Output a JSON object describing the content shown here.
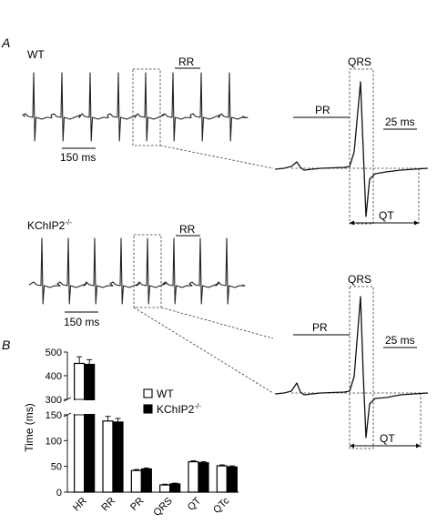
{
  "panels": {
    "a": {
      "letter": "A",
      "wt": {
        "genotype": "WT",
        "rr_label": "RR",
        "scale_bar": "150 ms",
        "zoom": {
          "qrs": "QRS",
          "pr": "PR",
          "qt": "QT",
          "scale": "25 ms"
        }
      },
      "ko": {
        "genotype_base": "KChIP2",
        "genotype_sup": "-/-",
        "rr_label": "RR",
        "scale_bar": "150 ms",
        "zoom": {
          "qrs": "QRS",
          "pr": "PR",
          "qt": "QT",
          "scale": "25 ms"
        }
      }
    },
    "b": {
      "letter": "B"
    }
  },
  "chart_data": {
    "type": "bar",
    "categories": [
      "HR",
      "RR",
      "PR",
      "QRS",
      "QT",
      "QTc"
    ],
    "ylabel": "Time (ms)",
    "axis_break": true,
    "segments": [
      {
        "ylim": [
          300,
          500
        ],
        "ticks": [
          300,
          400,
          500
        ]
      },
      {
        "ylim": [
          0,
          150
        ],
        "ticks": [
          0,
          50,
          100,
          150
        ]
      }
    ],
    "legend": {
      "placement": "inside-right",
      "entries": [
        {
          "name": "WT",
          "name_sup": "",
          "fill": "#ffffff"
        },
        {
          "name": "KChIP2",
          "name_sup": "-/-",
          "fill": "#000000"
        }
      ]
    },
    "series": [
      {
        "name": "WT",
        "color": "#ffffff",
        "values": [
          452,
          138,
          42,
          14,
          59,
          51
        ],
        "errors": [
          28,
          9,
          2,
          1.5,
          2,
          2
        ]
      },
      {
        "name": "KChIP2-/-",
        "color": "#000000",
        "values": [
          448,
          136,
          45,
          16,
          57,
          49
        ],
        "errors": [
          20,
          7,
          2,
          1.5,
          2,
          2
        ]
      }
    ]
  }
}
